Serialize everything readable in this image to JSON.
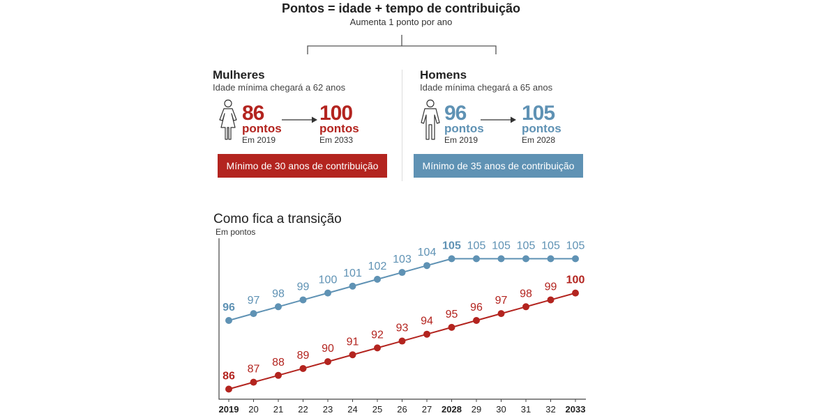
{
  "header": {
    "title": "Pontos = idade + tempo de contribuição",
    "subtitle": "Aumenta 1 ponto por ano"
  },
  "women": {
    "title": "Mulheres",
    "subtitle": "Idade mínima chegará a 62 anos",
    "from_value": "86",
    "from_unit": "pontos",
    "from_year": "Em 2019",
    "to_value": "100",
    "to_unit": "pontos",
    "to_year": "Em 2033",
    "bar_text": "Mínimo de 30 anos de contribuição",
    "color": "#b3241f",
    "icon": "woman-icon"
  },
  "men": {
    "title": "Homens",
    "subtitle": "Idade mínima chegará a 65 anos",
    "from_value": "96",
    "from_unit": "pontos",
    "from_year": "Em 2019",
    "to_value": "105",
    "to_unit": "pontos",
    "to_year": "Em 2028",
    "bar_text": "Mínimo de 35 anos de contribuição",
    "color": "#5f92b4",
    "icon": "man-icon"
  },
  "chart_data": {
    "type": "line",
    "title": "Como fica a transição",
    "subtitle": "Em pontos",
    "x": [
      "2019",
      "20",
      "21",
      "22",
      "23",
      "24",
      "25",
      "26",
      "27",
      "2028",
      "29",
      "30",
      "31",
      "32",
      "2033"
    ],
    "bold_ticks": [
      "2019",
      "2028",
      "2033"
    ],
    "series": [
      {
        "name": "Homens",
        "color": "#5f92b4",
        "values": [
          96,
          97,
          98,
          99,
          100,
          101,
          102,
          103,
          104,
          105,
          105,
          105,
          105,
          105,
          105
        ],
        "bold_labels": [
          0,
          9
        ]
      },
      {
        "name": "Mulheres",
        "color": "#b3241f",
        "values": [
          86,
          87,
          88,
          89,
          90,
          91,
          92,
          93,
          94,
          95,
          96,
          97,
          98,
          99,
          100
        ],
        "bold_labels": [
          0,
          14
        ]
      }
    ],
    "grid": false,
    "legend": "none"
  }
}
